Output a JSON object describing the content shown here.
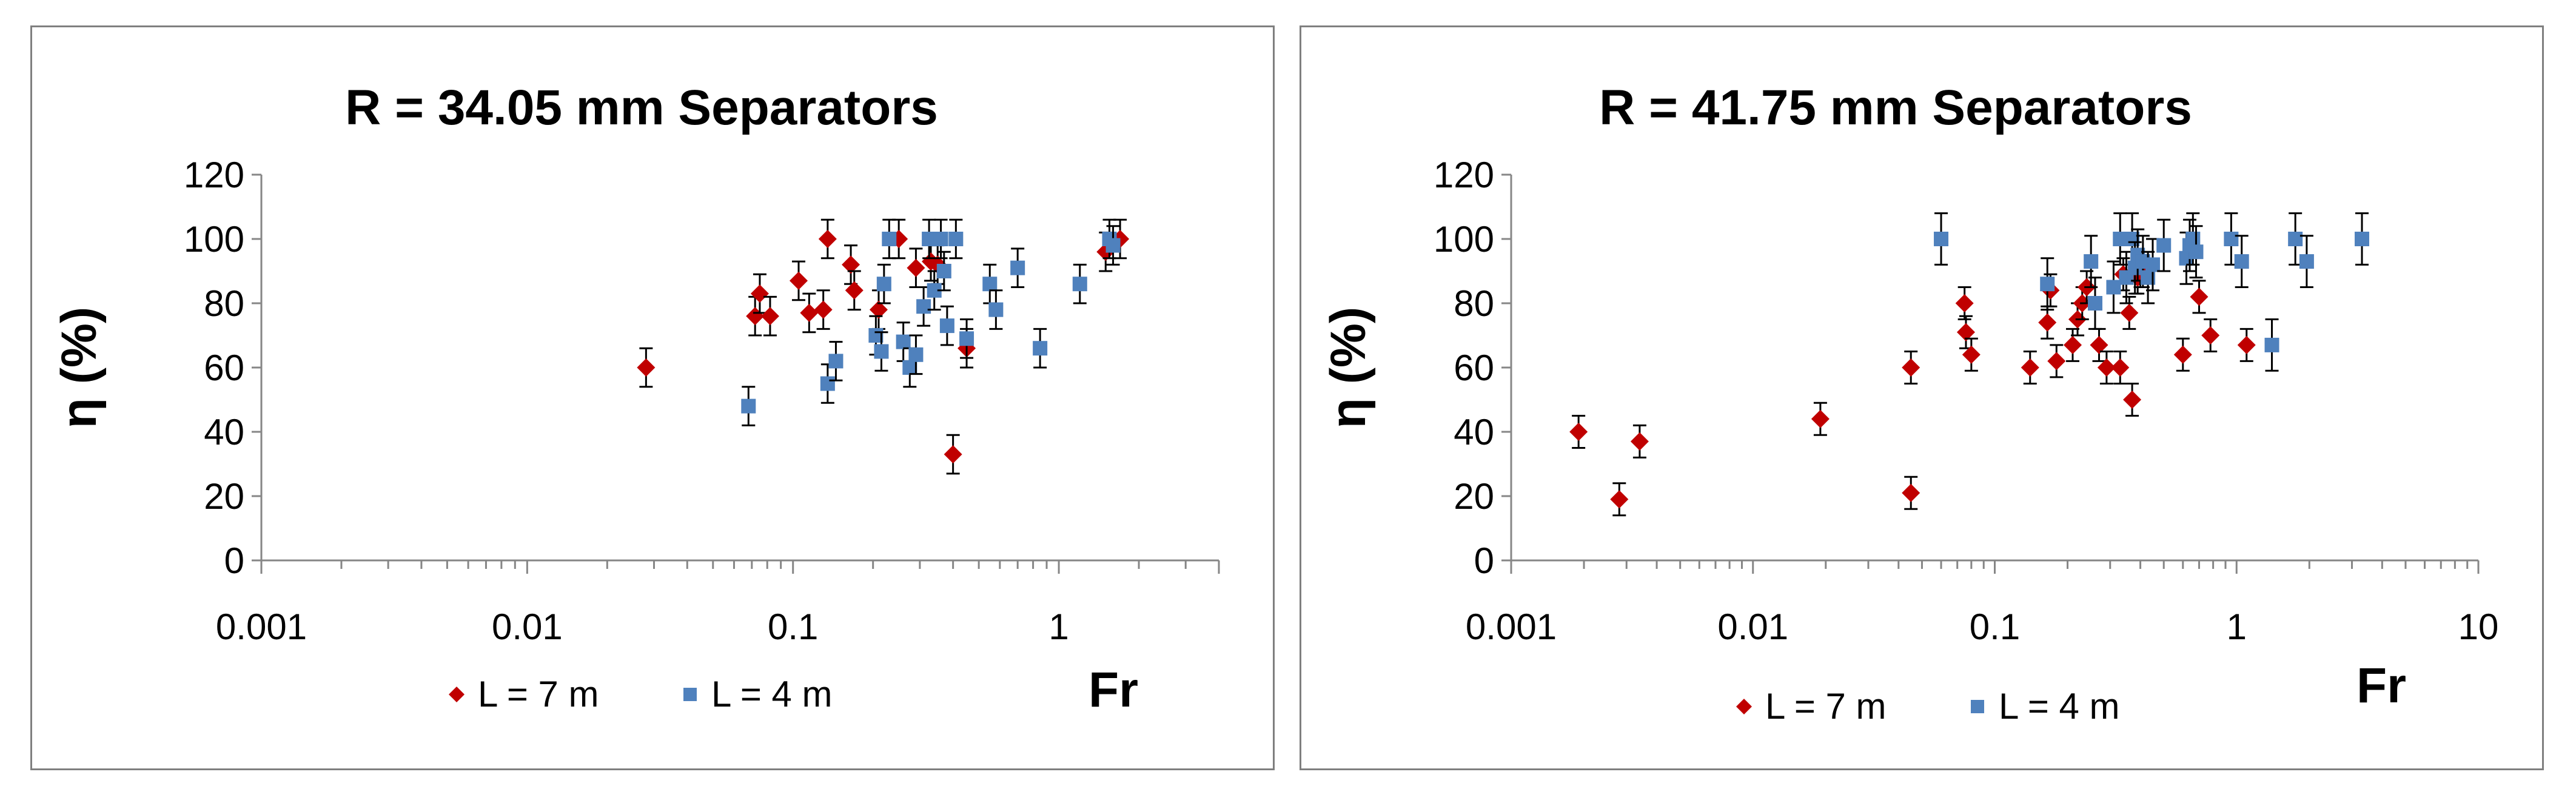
{
  "charts": [
    {
      "title": "R = 34.05 mm Separators",
      "ylabel": "η (%)",
      "xlabel": "Fr",
      "x_ticks": [
        "0.001",
        "0.01",
        "0.1",
        "1"
      ],
      "y_ticks": [
        "0",
        "20",
        "40",
        "60",
        "80",
        "100",
        "120"
      ],
      "legend": [
        "L = 7 m",
        "L = 4 m"
      ]
    },
    {
      "title": "R = 41.75 mm Separators",
      "ylabel": "η (%)",
      "xlabel": "Fr",
      "x_ticks": [
        "0.001",
        "0.01",
        "0.1",
        "1",
        "10"
      ],
      "y_ticks": [
        "0",
        "20",
        "40",
        "60",
        "80",
        "100",
        "120"
      ],
      "legend": [
        "L = 7 m",
        "L = 4 m"
      ]
    }
  ],
  "chart_data": [
    {
      "type": "scatter",
      "title": "R = 34.05 mm Separators",
      "xlabel": "Fr",
      "ylabel": "η (%)",
      "x_scale": "log",
      "xlim": [
        0.001,
        4
      ],
      "ylim": [
        0,
        120
      ],
      "grid": false,
      "legend_position": "bottom",
      "error_bars": true,
      "series": [
        {
          "name": "L = 7 m",
          "color": "#c00000",
          "marker": "diamond",
          "points": [
            [
              0.028,
              60
            ],
            [
              0.072,
              76
            ],
            [
              0.075,
              83
            ],
            [
              0.082,
              76
            ],
            [
              0.105,
              87
            ],
            [
              0.115,
              77
            ],
            [
              0.13,
              78
            ],
            [
              0.135,
              100
            ],
            [
              0.165,
              92
            ],
            [
              0.17,
              84
            ],
            [
              0.21,
              78
            ],
            [
              0.25,
              100
            ],
            [
              0.29,
              91
            ],
            [
              0.33,
              93
            ],
            [
              0.35,
              92
            ],
            [
              0.4,
              33
            ],
            [
              0.45,
              66
            ],
            [
              1.5,
              96
            ],
            [
              1.7,
              100
            ]
          ],
          "error": 6
        },
        {
          "name": "L = 4 m",
          "color": "#4f81bd",
          "marker": "square",
          "points": [
            [
              0.068,
              48
            ],
            [
              0.135,
              55
            ],
            [
              0.145,
              62
            ],
            [
              0.205,
              70
            ],
            [
              0.215,
              65
            ],
            [
              0.22,
              86
            ],
            [
              0.23,
              100
            ],
            [
              0.26,
              68
            ],
            [
              0.275,
              60
            ],
            [
              0.29,
              64
            ],
            [
              0.31,
              79
            ],
            [
              0.325,
              100
            ],
            [
              0.34,
              84
            ],
            [
              0.36,
              100
            ],
            [
              0.37,
              90
            ],
            [
              0.38,
              73
            ],
            [
              0.41,
              100
            ],
            [
              0.45,
              69
            ],
            [
              0.55,
              86
            ],
            [
              0.58,
              78
            ],
            [
              0.7,
              91
            ],
            [
              0.85,
              66
            ],
            [
              1.2,
              86
            ],
            [
              1.55,
              100
            ],
            [
              1.6,
              98
            ]
          ],
          "error": 6
        }
      ]
    },
    {
      "type": "scatter",
      "title": "R = 41.75 mm Separators",
      "xlabel": "Fr",
      "ylabel": "η (%)",
      "x_scale": "log",
      "xlim": [
        0.001,
        10
      ],
      "ylim": [
        0,
        120
      ],
      "grid": false,
      "legend_position": "bottom",
      "error_bars": true,
      "series": [
        {
          "name": "L = 7 m",
          "color": "#c00000",
          "marker": "diamond",
          "points": [
            [
              0.0019,
              40
            ],
            [
              0.0028,
              19
            ],
            [
              0.0034,
              37
            ],
            [
              0.019,
              44
            ],
            [
              0.045,
              21
            ],
            [
              0.045,
              60
            ],
            [
              0.075,
              80
            ],
            [
              0.076,
              71
            ],
            [
              0.08,
              64
            ],
            [
              0.14,
              60
            ],
            [
              0.165,
              74
            ],
            [
              0.17,
              84
            ],
            [
              0.18,
              62
            ],
            [
              0.21,
              67
            ],
            [
              0.22,
              75
            ],
            [
              0.23,
              80
            ],
            [
              0.24,
              85
            ],
            [
              0.27,
              67
            ],
            [
              0.29,
              60
            ],
            [
              0.33,
              60
            ],
            [
              0.34,
              89
            ],
            [
              0.36,
              77
            ],
            [
              0.37,
              50
            ],
            [
              0.39,
              88
            ],
            [
              0.4,
              90
            ],
            [
              0.6,
              64
            ],
            [
              0.7,
              82
            ],
            [
              0.78,
              70
            ],
            [
              1.1,
              67
            ]
          ],
          "error": 5
        },
        {
          "name": "L = 4 m",
          "color": "#4f81bd",
          "marker": "square",
          "points": [
            [
              0.06,
              100
            ],
            [
              0.165,
              86
            ],
            [
              0.25,
              93
            ],
            [
              0.26,
              80
            ],
            [
              0.31,
              85
            ],
            [
              0.33,
              100
            ],
            [
              0.35,
              88
            ],
            [
              0.37,
              100
            ],
            [
              0.38,
              91
            ],
            [
              0.39,
              95
            ],
            [
              0.41,
              93
            ],
            [
              0.43,
              88
            ],
            [
              0.45,
              92
            ],
            [
              0.5,
              98
            ],
            [
              0.62,
              94
            ],
            [
              0.64,
              98
            ],
            [
              0.66,
              100
            ],
            [
              0.68,
              96
            ],
            [
              0.95,
              100
            ],
            [
              1.05,
              93
            ],
            [
              1.4,
              67
            ],
            [
              1.75,
              100
            ],
            [
              1.95,
              93
            ],
            [
              3.3,
              100
            ]
          ],
          "error": 8
        }
      ]
    }
  ]
}
